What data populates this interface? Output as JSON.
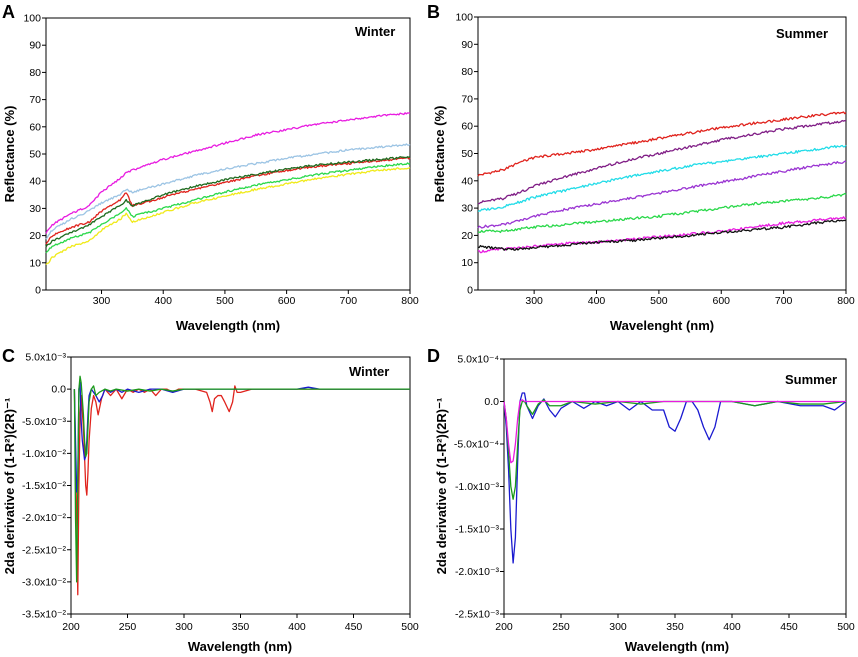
{
  "colors": {
    "magenta": "#e81ce0",
    "lightblue": "#9cc4e4",
    "red": "#e0231d",
    "darkgreen": "#1e6a1e",
    "green": "#2ad84a",
    "yellow": "#f0ea1a",
    "purple": "#801e86",
    "cyan": "#22dce8",
    "violet": "#9a34d2",
    "black": "#111111",
    "blue": "#1a1ad0",
    "green2": "#1a9a1a"
  },
  "chart_data": [
    {
      "panel": "A",
      "type": "line",
      "title": "Winter",
      "xlabel": "Wavelength (nm)",
      "ylabel": "Reflectance (%)",
      "xlim": [
        210,
        800
      ],
      "ylim": [
        0,
        100
      ],
      "xticks": [
        "300",
        "400",
        "500",
        "600",
        "700",
        "800"
      ],
      "yticks": [
        "0",
        "10",
        "20",
        "30",
        "40",
        "50",
        "60",
        "70",
        "80",
        "90",
        "100"
      ],
      "series": [
        {
          "name": "magenta",
          "color": "magenta",
          "x": [
            210,
            220,
            250,
            280,
            300,
            330,
            340,
            350,
            400,
            450,
            500,
            550,
            600,
            650,
            700,
            750,
            800
          ],
          "y": [
            21,
            24,
            28,
            31,
            36,
            41,
            43,
            44,
            48,
            51,
            54,
            57,
            59,
            61,
            62.5,
            64,
            65
          ]
        },
        {
          "name": "lightblue",
          "color": "lightblue",
          "x": [
            210,
            220,
            250,
            280,
            300,
            330,
            340,
            350,
            400,
            450,
            500,
            550,
            600,
            650,
            700,
            750,
            800
          ],
          "y": [
            19,
            22,
            26,
            29,
            32,
            35,
            37,
            36,
            39,
            42,
            44.5,
            46.5,
            48.5,
            50,
            51.5,
            52.5,
            53.5
          ]
        },
        {
          "name": "red",
          "color": "red",
          "x": [
            210,
            220,
            250,
            280,
            300,
            330,
            340,
            350,
            400,
            450,
            500,
            550,
            600,
            650,
            700,
            750,
            800
          ],
          "y": [
            17,
            20,
            23,
            25,
            29,
            33,
            36,
            31,
            34,
            37,
            39.5,
            42,
            44,
            45.5,
            46.5,
            47.5,
            48.5
          ]
        },
        {
          "name": "darkgreen",
          "color": "darkgreen",
          "x": [
            210,
            220,
            250,
            280,
            300,
            330,
            340,
            350,
            400,
            450,
            500,
            550,
            600,
            650,
            700,
            750,
            800
          ],
          "y": [
            16,
            18,
            21,
            24,
            27,
            31,
            33,
            31,
            35,
            38,
            40.5,
            42.5,
            44.5,
            46,
            47,
            48,
            49
          ]
        },
        {
          "name": "green",
          "color": "green",
          "x": [
            210,
            220,
            250,
            280,
            300,
            330,
            340,
            350,
            400,
            450,
            500,
            550,
            600,
            650,
            700,
            750,
            800
          ],
          "y": [
            14,
            16,
            19,
            21,
            24,
            28,
            30,
            27,
            30,
            33,
            36,
            38.5,
            40.5,
            42.5,
            44,
            45.5,
            46.5
          ]
        },
        {
          "name": "yellow",
          "color": "yellow",
          "x": [
            210,
            220,
            250,
            280,
            300,
            330,
            340,
            350,
            400,
            450,
            500,
            550,
            600,
            650,
            700,
            750,
            800
          ],
          "y": [
            9,
            12,
            16,
            18,
            22,
            26,
            28,
            25,
            28.5,
            32,
            34.5,
            37,
            39,
            41,
            42.5,
            44,
            45
          ]
        }
      ]
    },
    {
      "panel": "B",
      "type": "line",
      "title": "Summer",
      "xlabel": "Wavelenght (nm)",
      "ylabel": "Reflectance (%)",
      "xlim": [
        210,
        800
      ],
      "ylim": [
        0,
        100
      ],
      "xticks": [
        "300",
        "400",
        "500",
        "600",
        "700",
        "800"
      ],
      "yticks": [
        "0",
        "10",
        "20",
        "30",
        "40",
        "50",
        "60",
        "70",
        "80",
        "90",
        "100"
      ],
      "series": [
        {
          "name": "red",
          "color": "red",
          "x": [
            210,
            250,
            280,
            300,
            350,
            400,
            450,
            500,
            550,
            600,
            650,
            700,
            750,
            800
          ],
          "y": [
            42,
            44,
            47,
            48.5,
            50,
            51.5,
            53.5,
            55.5,
            57.5,
            59.5,
            61,
            62.5,
            64,
            65
          ]
        },
        {
          "name": "purple",
          "color": "purple",
          "x": [
            210,
            250,
            280,
            300,
            350,
            400,
            450,
            500,
            550,
            600,
            650,
            700,
            750,
            800
          ],
          "y": [
            32,
            33.5,
            36,
            38,
            41.5,
            44.5,
            47.5,
            50,
            52.5,
            55,
            57,
            59,
            60.5,
            62
          ]
        },
        {
          "name": "cyan",
          "color": "cyan",
          "x": [
            210,
            250,
            280,
            300,
            350,
            400,
            450,
            500,
            550,
            600,
            650,
            700,
            750,
            800
          ],
          "y": [
            29,
            30.5,
            32.5,
            34,
            36.5,
            39,
            41.5,
            43.5,
            45.5,
            47,
            48.5,
            50,
            51.5,
            53
          ]
        },
        {
          "name": "violet",
          "color": "violet",
          "x": [
            210,
            250,
            280,
            300,
            350,
            400,
            450,
            500,
            550,
            600,
            650,
            700,
            750,
            800
          ],
          "y": [
            23,
            24,
            25.5,
            27,
            29.5,
            31.5,
            33.5,
            35.5,
            37.5,
            39.5,
            41.5,
            43.5,
            45.5,
            47
          ]
        },
        {
          "name": "green",
          "color": "green",
          "x": [
            210,
            250,
            280,
            300,
            350,
            400,
            450,
            500,
            550,
            600,
            650,
            700,
            750,
            800
          ],
          "y": [
            21.5,
            21.5,
            22.5,
            23,
            24,
            25,
            26,
            27,
            28.5,
            30,
            31.5,
            32.5,
            33.5,
            35
          ]
        },
        {
          "name": "magenta",
          "color": "magenta",
          "x": [
            210,
            250,
            280,
            300,
            350,
            400,
            450,
            500,
            550,
            600,
            650,
            700,
            750,
            800
          ],
          "y": [
            14,
            15,
            15.5,
            16,
            17,
            17.5,
            18.5,
            19.5,
            20.5,
            21.5,
            23,
            24.5,
            25.5,
            26.5
          ]
        },
        {
          "name": "black",
          "color": "black",
          "x": [
            210,
            250,
            280,
            300,
            350,
            400,
            450,
            500,
            550,
            600,
            650,
            700,
            750,
            800
          ],
          "y": [
            16,
            15,
            15,
            15.5,
            16.5,
            17.5,
            18,
            19,
            20,
            21,
            22,
            23,
            24.5,
            25.5
          ]
        }
      ]
    },
    {
      "panel": "C",
      "type": "line",
      "title": "Winter",
      "xlabel": "Wavelength (nm)",
      "ylabel": "2da derivative of (1-R²)(2R)⁻¹",
      "xlim": [
        200,
        500
      ],
      "ylim": [
        -0.035,
        0.005
      ],
      "xticks": [
        "200",
        "250",
        "300",
        "350",
        "400",
        "450",
        "500"
      ],
      "yticks": [
        "5.0x10⁻³",
        "0.0",
        "-5.0x10⁻³",
        "-1.0x10⁻²",
        "-1.5x10⁻²",
        "-2.0x10⁻²",
        "-2.5x10⁻²",
        "-3.0x10⁻²",
        "-3.5x10⁻²"
      ],
      "series": [
        {
          "name": "red",
          "color": "red",
          "x": [
            203,
            205,
            206,
            207,
            208,
            209,
            211,
            213,
            214,
            215,
            216,
            218,
            220,
            222,
            224,
            227,
            230,
            235,
            240,
            245,
            250,
            255,
            260,
            265,
            270,
            275,
            280,
            285,
            290,
            295,
            300,
            310,
            320,
            323,
            325,
            327,
            330,
            333,
            336,
            340,
            343,
            345,
            347,
            350,
            360,
            380,
            400,
            450,
            500
          ],
          "y": [
            0,
            -0.02,
            -0.032,
            -0.015,
            -0.004,
            -0.001,
            -0.006,
            -0.015,
            -0.0165,
            -0.013,
            -0.008,
            -0.003,
            -0.001,
            -0.002,
            -0.004,
            -0.0015,
            0,
            -0.001,
            0,
            -0.0015,
            0,
            -0.0005,
            0,
            -0.0005,
            0,
            -0.001,
            0,
            0,
            -0.0005,
            0,
            0,
            0,
            -0.0005,
            -0.002,
            -0.0035,
            -0.0015,
            -0.001,
            -0.001,
            -0.002,
            -0.0035,
            -0.002,
            0.0005,
            -0.0005,
            -0.0005,
            0,
            0,
            0,
            0,
            0
          ]
        },
        {
          "name": "blue",
          "color": "blue",
          "x": [
            203,
            205,
            206,
            207,
            208,
            209,
            210,
            212,
            213,
            214,
            215,
            216,
            218,
            220,
            222,
            225,
            228,
            230,
            235,
            240,
            245,
            250,
            260,
            270,
            280,
            290,
            300,
            320,
            340,
            360,
            380,
            400,
            410,
            420,
            450,
            500
          ],
          "y": [
            0,
            -0.016,
            -0.014,
            0,
            0.001,
            -0.005,
            -0.008,
            -0.011,
            -0.0105,
            -0.008,
            -0.004,
            -0.001,
            0,
            -0.0005,
            -0.001,
            -0.002,
            -0.001,
            0,
            -0.0005,
            0,
            -0.0005,
            0,
            -0.0005,
            0,
            0,
            -0.0005,
            0,
            0,
            0,
            0,
            0,
            0,
            0.0003,
            0,
            0,
            0
          ]
        },
        {
          "name": "green",
          "color": "green2",
          "x": [
            203,
            204,
            205,
            206,
            207,
            208,
            209,
            211,
            212,
            213,
            214,
            215,
            216,
            218,
            220,
            222,
            225,
            230,
            235,
            240,
            250,
            260,
            270,
            280,
            290,
            300,
            320,
            340,
            360,
            380,
            400,
            450,
            500
          ],
          "y": [
            0,
            -0.02,
            -0.03,
            -0.015,
            0,
            0.002,
            0.001,
            -0.004,
            -0.008,
            -0.0105,
            -0.01,
            -0.006,
            -0.002,
            0,
            0.0005,
            -0.001,
            -0.0005,
            0,
            -0.0003,
            0,
            -0.0003,
            0,
            -0.0003,
            0,
            -0.0003,
            0,
            0,
            0,
            0,
            0,
            0,
            0,
            0
          ]
        }
      ]
    },
    {
      "panel": "D",
      "type": "line",
      "title": "Summer",
      "xlabel": "Wavelength (nm)",
      "ylabel": "2da derivative of (1-R²)(2R)⁻¹",
      "xlim": [
        200,
        500
      ],
      "ylim": [
        -0.0025,
        0.0005
      ],
      "xticks": [
        "200",
        "250",
        "300",
        "350",
        "400",
        "450",
        "500"
      ],
      "yticks": [
        "5.0x10⁻⁴",
        "0.0",
        "-5.0x10⁻⁴",
        "-1.0x10⁻³",
        "-1.5x10⁻³",
        "-2.0x10⁻³",
        "-2.5x10⁻³"
      ],
      "series": [
        {
          "name": "blue",
          "color": "blue",
          "x": [
            200,
            202,
            204,
            206,
            208,
            210,
            212,
            214,
            216,
            218,
            220,
            225,
            230,
            235,
            240,
            245,
            250,
            260,
            270,
            280,
            290,
            300,
            310,
            320,
            330,
            340,
            345,
            350,
            355,
            360,
            365,
            370,
            375,
            380,
            385,
            390,
            395,
            400,
            420,
            440,
            460,
            480,
            490,
            500
          ],
          "y": [
            0,
            -0.0003,
            -0.0008,
            -0.0015,
            -0.0019,
            -0.0016,
            -0.0007,
            0,
            0.0001,
            0.0001,
            -5e-05,
            -0.0002,
            -5e-05,
            3e-05,
            -0.0001,
            -0.00018,
            -8e-05,
            0,
            -8e-05,
            0,
            -5e-05,
            0,
            -0.0001,
            0,
            -0.0001,
            -0.0001,
            -0.0003,
            -0.00035,
            -0.0002,
            0,
            0,
            -0.0001,
            -0.0003,
            -0.00045,
            -0.0003,
            0,
            0,
            0,
            -5e-05,
            0,
            -5e-05,
            -5e-05,
            -0.0001,
            0
          ]
        },
        {
          "name": "green",
          "color": "green2",
          "x": [
            200,
            202,
            204,
            206,
            208,
            210,
            212,
            214,
            216,
            218,
            220,
            225,
            230,
            235,
            240,
            250,
            260,
            280,
            300,
            320,
            340,
            360,
            380,
            400,
            420,
            440,
            460,
            480,
            500
          ],
          "y": [
            0,
            -0.0002,
            -0.0006,
            -0.001,
            -0.00115,
            -0.001,
            -0.0005,
            -0.0001,
            0,
            0,
            -5e-05,
            -0.00015,
            -3e-05,
            2e-05,
            -5e-05,
            -5e-05,
            0,
            -3e-05,
            0,
            -3e-05,
            0,
            0,
            0,
            0,
            -5e-05,
            0,
            -3e-05,
            -3e-05,
            0
          ]
        },
        {
          "name": "magenta",
          "color": "magenta",
          "x": [
            200,
            202,
            204,
            206,
            208,
            210,
            212,
            214,
            216,
            218,
            220,
            230,
            250,
            300,
            350,
            400,
            450,
            500
          ],
          "y": [
            0,
            -0.0002,
            -0.0005,
            -0.00072,
            -0.0007,
            -0.0005,
            -0.0002,
            0,
            2e-05,
            0,
            0,
            0,
            0,
            0,
            0,
            0,
            0,
            0
          ]
        }
      ]
    }
  ]
}
